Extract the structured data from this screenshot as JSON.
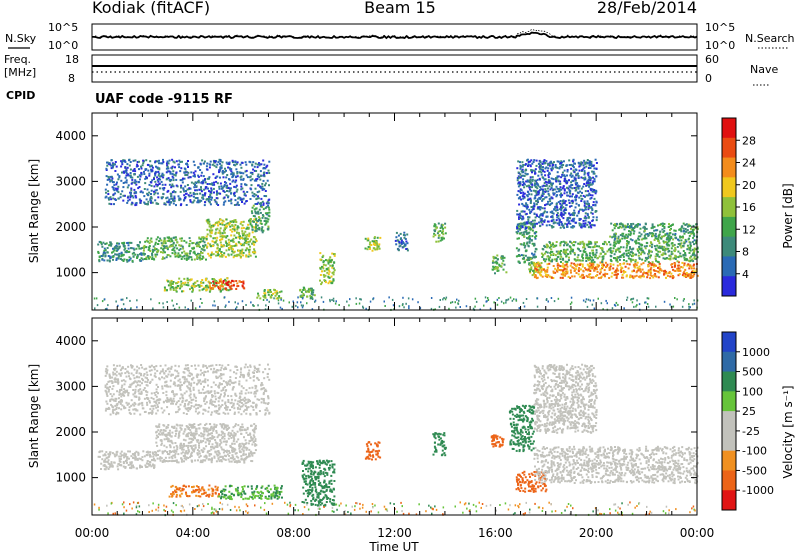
{
  "header": {
    "station": "Kodiak (fitACF)",
    "beam": "Beam 15",
    "date": "28/Feb/2014"
  },
  "top_panels": {
    "nsky_label": "N.Sky",
    "nsearch_label": "N.Search",
    "noise_ticks": [
      "10^5",
      "10^0"
    ],
    "freq_label_1": "Freq.",
    "freq_label_2": "[MHz]",
    "freq_ticks": [
      "18",
      "8"
    ],
    "nave_label": "Nave",
    "nave_ticks": [
      "60",
      "0"
    ],
    "cpid_label": "CPID",
    "cpid_text": "UAF code -9115 RF"
  },
  "colors": {
    "power": [
      "#2a2adc",
      "#2a6ab5",
      "#3d8a7a",
      "#3fa54a",
      "#8fc13a",
      "#f0c81e",
      "#f38c1c",
      "#ea4b12",
      "#e01010"
    ],
    "velocity": [
      "#2244c8",
      "#2f6aa6",
      "#2f8a52",
      "#66c43a",
      "#c2c2bc",
      "#c2c2bc",
      "#f09020",
      "#ec6418",
      "#e01414"
    ]
  },
  "chart_data": [
    {
      "type": "heatmap",
      "name": "power",
      "ylabel": "Slant Range [km]",
      "ylim": [
        180,
        4500
      ],
      "y_ticks": [
        1000,
        2000,
        3000,
        4000
      ],
      "xlim": [
        0,
        24
      ],
      "x_ticks": [
        "00:00",
        "04:00",
        "08:00",
        "12:00",
        "16:00",
        "20:00",
        "00:00"
      ],
      "colorbar_label": "Power [dB]",
      "colorbar_ticks": [
        "28",
        "24",
        "20",
        "16",
        "12",
        "8",
        "4"
      ],
      "colorbar_range": [
        0,
        30
      ],
      "echo_regions": [
        {
          "t": [
            0.2,
            2.0
          ],
          "r": [
            1250,
            1700
          ],
          "v": 9
        },
        {
          "t": [
            2.0,
            4.5
          ],
          "r": [
            1300,
            1800
          ],
          "v": 12
        },
        {
          "t": [
            4.5,
            6.5
          ],
          "r": [
            1350,
            2200
          ],
          "v": 15
        },
        {
          "t": [
            6.3,
            7.0
          ],
          "r": [
            1900,
            2500
          ],
          "v": 10
        },
        {
          "t": [
            2.8,
            5.5
          ],
          "r": [
            600,
            900
          ],
          "v": 14
        },
        {
          "t": [
            4.6,
            6.0
          ],
          "r": [
            650,
            850
          ],
          "v": 26
        },
        {
          "t": [
            6.5,
            7.5
          ],
          "r": [
            450,
            650
          ],
          "v": 14
        },
        {
          "t": [
            8.2,
            8.8
          ],
          "r": [
            450,
            700
          ],
          "v": 12
        },
        {
          "t": [
            9.0,
            9.6
          ],
          "r": [
            750,
            1450
          ],
          "v": 14
        },
        {
          "t": [
            10.8,
            11.4
          ],
          "r": [
            1500,
            1800
          ],
          "v": 15
        },
        {
          "t": [
            12.0,
            12.5
          ],
          "r": [
            1500,
            1900
          ],
          "v": 6
        },
        {
          "t": [
            13.5,
            14.0
          ],
          "r": [
            1700,
            2100
          ],
          "v": 12
        },
        {
          "t": [
            15.8,
            16.4
          ],
          "r": [
            1000,
            1400
          ],
          "v": 12
        },
        {
          "t": [
            16.8,
            17.6
          ],
          "r": [
            1200,
            2100
          ],
          "v": 10
        },
        {
          "t": [
            17.3,
            17.8
          ],
          "r": [
            950,
            1250
          ],
          "v": 16
        },
        {
          "t": [
            17.5,
            24.0
          ],
          "r": [
            900,
            1250
          ],
          "v": 22
        },
        {
          "t": [
            17.8,
            24.0
          ],
          "r": [
            1250,
            1700
          ],
          "v": 12
        },
        {
          "t": [
            20.5,
            24.0
          ],
          "r": [
            1700,
            2100
          ],
          "v": 10
        },
        {
          "t": [
            0.5,
            7.0
          ],
          "r": [
            2500,
            3500
          ],
          "v": 5
        },
        {
          "t": [
            16.8,
            20.0
          ],
          "r": [
            2000,
            3500
          ],
          "v": 5
        }
      ]
    },
    {
      "type": "heatmap",
      "name": "velocity",
      "ylabel": "Slant Range [km]",
      "ylim": [
        180,
        4500
      ],
      "y_ticks": [
        1000,
        2000,
        3000,
        4000
      ],
      "xlim": [
        0,
        24
      ],
      "x_ticks": [
        "00:00",
        "04:00",
        "08:00",
        "12:00",
        "16:00",
        "20:00",
        "00:00"
      ],
      "xlabel": "Time UT",
      "colorbar_label": "Velocity [m s⁻¹]",
      "colorbar_ticks": [
        "1000",
        "500",
        "100",
        "25",
        "-25",
        "-100",
        "-500",
        "-1000"
      ],
      "echo_regions": [
        {
          "t": [
            0.2,
            2.5
          ],
          "r": [
            1200,
            1600
          ],
          "v": 0
        },
        {
          "t": [
            2.5,
            6.5
          ],
          "r": [
            1350,
            2200
          ],
          "v": 0
        },
        {
          "t": [
            3.0,
            5.0
          ],
          "r": [
            600,
            850
          ],
          "v": -100
        },
        {
          "t": [
            5.0,
            7.5
          ],
          "r": [
            550,
            850
          ],
          "v": 100
        },
        {
          "t": [
            0.5,
            7.0
          ],
          "r": [
            2400,
            3500
          ],
          "v": 0
        },
        {
          "t": [
            8.3,
            9.6
          ],
          "r": [
            400,
            1400
          ],
          "v": 300
        },
        {
          "t": [
            10.8,
            11.4
          ],
          "r": [
            1400,
            1800
          ],
          "v": -150
        },
        {
          "t": [
            13.5,
            14.0
          ],
          "r": [
            1500,
            2000
          ],
          "v": 200
        },
        {
          "t": [
            15.8,
            16.3
          ],
          "r": [
            1700,
            1950
          ],
          "v": -200
        },
        {
          "t": [
            16.8,
            18.0
          ],
          "r": [
            700,
            1150
          ],
          "v": -200
        },
        {
          "t": [
            16.5,
            17.5
          ],
          "r": [
            1600,
            2600
          ],
          "v": 150
        },
        {
          "t": [
            17.5,
            24.0
          ],
          "r": [
            900,
            1700
          ],
          "v": 0
        },
        {
          "t": [
            17.5,
            20.0
          ],
          "r": [
            2000,
            3500
          ],
          "v": 0
        }
      ]
    }
  ]
}
